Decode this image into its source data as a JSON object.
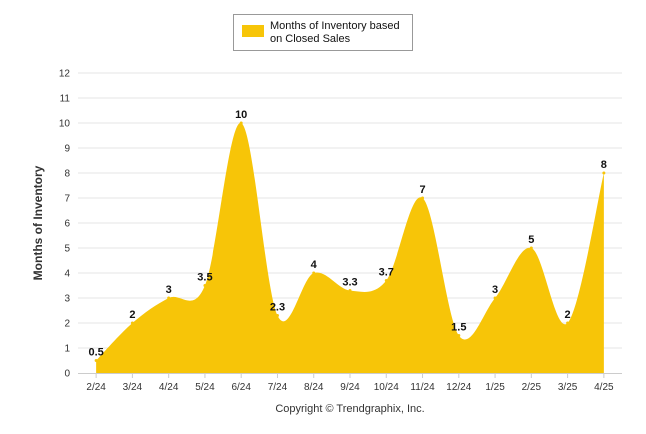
{
  "chart_data": {
    "type": "area",
    "categories": [
      "2/24",
      "3/24",
      "4/24",
      "5/24",
      "6/24",
      "7/24",
      "8/24",
      "9/24",
      "10/24",
      "11/24",
      "12/24",
      "1/25",
      "2/25",
      "3/25",
      "4/25"
    ],
    "series": [
      {
        "name": "Months of Inventory based on Closed Sales",
        "values": [
          0.5,
          2,
          3,
          3.5,
          10,
          2.3,
          4,
          3.3,
          3.7,
          7,
          1.5,
          3,
          5,
          2,
          8
        ],
        "labels": [
          "0.5",
          "2",
          "3",
          "3.5",
          "10",
          "2.3",
          "4",
          "3.3",
          "3.7",
          "7",
          "1.5",
          "3",
          "5",
          "2",
          "8"
        ]
      }
    ],
    "ylabel": "Months of Inventory",
    "xlabel": "",
    "ylim": [
      0,
      12
    ],
    "yticks": [
      0,
      1,
      2,
      3,
      4,
      5,
      6,
      7,
      8,
      9,
      10,
      11,
      12
    ],
    "grid": true,
    "legend": {
      "position": "top-center",
      "lines": [
        "Months of Inventory based",
        "on Closed Sales"
      ]
    },
    "footer": "Copyright © Trendgraphix, Inc.",
    "colors": {
      "fill": "#F7C508",
      "grid": "#E6E6E6",
      "axis": "#CCCCCC"
    }
  }
}
